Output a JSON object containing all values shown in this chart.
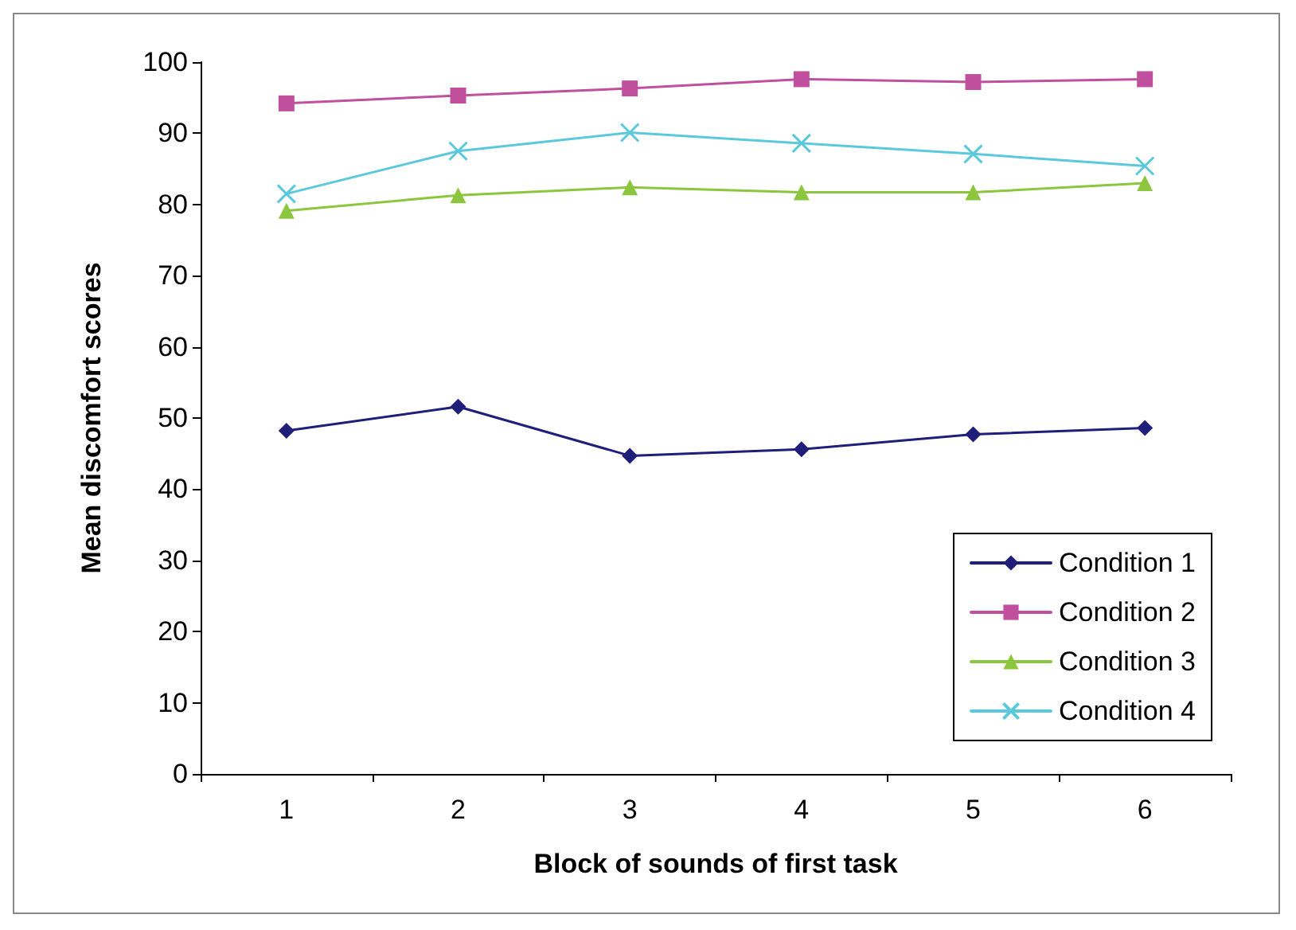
{
  "chart_data": {
    "type": "line",
    "xlabel": "Block of sounds of first task",
    "ylabel": "Mean discomfort scores",
    "categories": [
      "1",
      "2",
      "3",
      "4",
      "5",
      "6"
    ],
    "series": [
      {
        "name": "Condition 1",
        "color": "#1f1f7a",
        "marker": "diamond",
        "values": [
          48.2,
          51.6,
          44.7,
          45.6,
          47.7,
          48.6
        ]
      },
      {
        "name": "Condition 2",
        "color": "#c0509e",
        "marker": "square",
        "values": [
          94.2,
          95.3,
          96.3,
          97.6,
          97.2,
          97.6
        ]
      },
      {
        "name": "Condition 3",
        "color": "#8cc63f",
        "marker": "triangle",
        "values": [
          79.1,
          81.3,
          82.4,
          81.7,
          81.7,
          83.0
        ]
      },
      {
        "name": "Condition 4",
        "color": "#5bc8dc",
        "marker": "cross",
        "values": [
          81.5,
          87.5,
          90.1,
          88.6,
          87.1,
          85.4
        ]
      }
    ],
    "ylim": [
      0,
      100
    ],
    "yticks": [
      0,
      10,
      20,
      30,
      40,
      50,
      60,
      70,
      80,
      90,
      100
    ],
    "grid": false,
    "legend": "bottom right"
  }
}
